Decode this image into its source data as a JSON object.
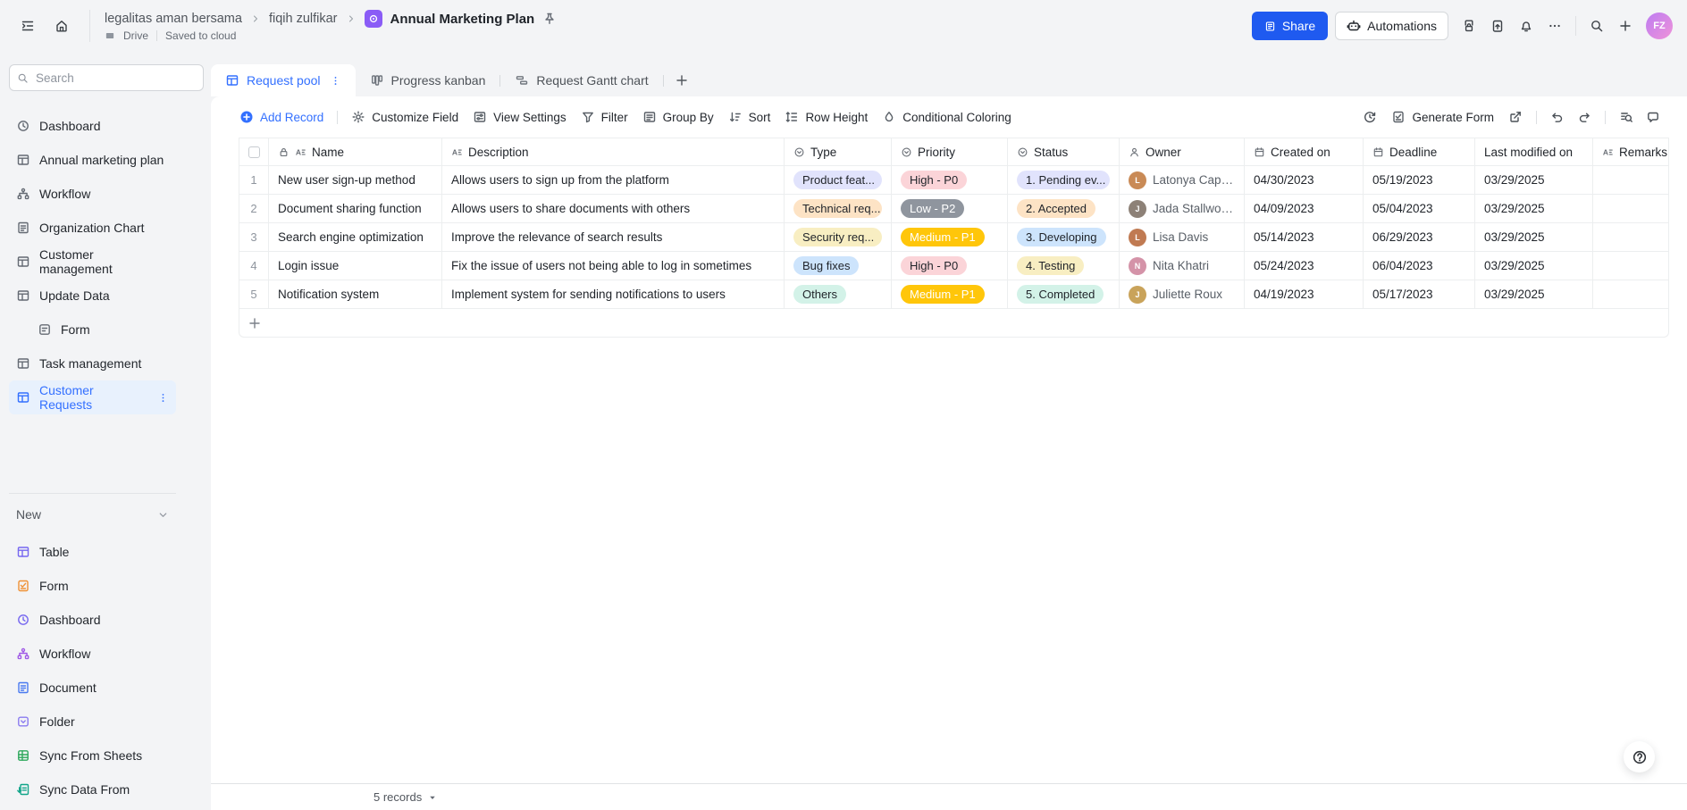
{
  "colors": {
    "accent": "#3370ff",
    "share_button": "#1f5af0",
    "selected_bg": "#e8f1fd",
    "app_icon": "#8a5cf6"
  },
  "topbar": {
    "breadcrumb": [
      {
        "label": "legalitas aman bersama"
      },
      {
        "label": "fiqih zulfikar"
      },
      {
        "label": "Annual Marketing Plan"
      }
    ],
    "drive_label": "Drive",
    "saved_label": "Saved to cloud",
    "share_label": "Share",
    "automations_label": "Automations",
    "avatar_initials": "FZ",
    "right_icons": [
      {
        "icon": "filelock",
        "name": "file-permissions-icon"
      },
      {
        "icon": "approval",
        "name": "approval-icon"
      },
      {
        "icon": "bell",
        "name": "notifications-icon"
      },
      {
        "icon": "ellipsis",
        "name": "more-icon"
      },
      {
        "divider": true
      },
      {
        "icon": "search",
        "name": "search-icon"
      },
      {
        "icon": "plus",
        "name": "create-new-icon"
      }
    ]
  },
  "sidebar": {
    "search_placeholder": "Search",
    "items": [
      {
        "label": "Dashboard",
        "icon": "clock"
      },
      {
        "label": "Annual marketing plan",
        "icon": "grid"
      },
      {
        "label": "Workflow",
        "icon": "workflow"
      },
      {
        "label": "Organization Chart",
        "icon": "doc"
      },
      {
        "label": "Customer management",
        "icon": "grid"
      },
      {
        "label": "Update Data",
        "icon": "grid"
      },
      {
        "label": "Form",
        "icon": "form",
        "sub": true
      },
      {
        "label": "Task management",
        "icon": "grid"
      },
      {
        "label": "Customer Requests",
        "icon": "grid",
        "selected": true
      }
    ],
    "new_section_label": "New",
    "new_items": [
      {
        "label": "Table",
        "icon": "grid",
        "color": "#7667f0"
      },
      {
        "label": "Form",
        "icon": "formcheck",
        "color": "#ef9135"
      },
      {
        "label": "Dashboard",
        "icon": "clock",
        "color": "#7667f0"
      },
      {
        "label": "Workflow",
        "icon": "workflow",
        "color": "#a05ae6"
      },
      {
        "label": "Document",
        "icon": "doc",
        "color": "#4a7af0"
      },
      {
        "label": "Folder",
        "icon": "folderv",
        "color": "#8a7bf0"
      },
      {
        "label": "Sync From Sheets",
        "icon": "sheets",
        "color": "#2ea85c"
      },
      {
        "label": "Sync Data From",
        "icon": "sync",
        "color": "#12a58a"
      }
    ]
  },
  "tabs": {
    "items": [
      {
        "label": "Request pool",
        "icon": "grid",
        "active": true
      },
      {
        "label": "Progress kanban",
        "icon": "kanban"
      },
      {
        "label": "Request Gantt chart",
        "icon": "gantt"
      }
    ]
  },
  "toolbar": {
    "left": [
      {
        "label": "Add Record",
        "icon": "pluscircle",
        "accent": true,
        "divider_after": true
      },
      {
        "label": "Customize Field",
        "icon": "gear"
      },
      {
        "label": "View Settings",
        "icon": "panel"
      },
      {
        "label": "Filter",
        "icon": "filter"
      },
      {
        "label": "Group By",
        "icon": "groupby"
      },
      {
        "label": "Sort",
        "icon": "sort"
      },
      {
        "label": "Row Height",
        "icon": "rowheight"
      },
      {
        "label": "Conditional Coloring",
        "icon": "coloring"
      }
    ],
    "right": [
      {
        "icon": "history",
        "name": "history-icon"
      },
      {
        "icon": "formcheck",
        "label": "Generate Form",
        "name": "generate-form-button"
      },
      {
        "icon": "export",
        "name": "share-view-icon"
      },
      {
        "divider": true
      },
      {
        "icon": "undo",
        "name": "undo-icon"
      },
      {
        "icon": "redo",
        "name": "redo-icon"
      },
      {
        "divider": true
      },
      {
        "icon": "findview",
        "name": "find-in-view-icon"
      },
      {
        "icon": "comment",
        "name": "comment-icon"
      }
    ]
  },
  "table": {
    "columns": [
      {
        "key": "name",
        "label": "Name",
        "icon": "textfield",
        "lock": true
      },
      {
        "key": "description",
        "label": "Description",
        "icon": "textfield"
      },
      {
        "key": "type",
        "label": "Type",
        "icon": "select"
      },
      {
        "key": "priority",
        "label": "Priority",
        "icon": "select"
      },
      {
        "key": "status",
        "label": "Status",
        "icon": "select"
      },
      {
        "key": "owner",
        "label": "Owner",
        "icon": "person"
      },
      {
        "key": "created_on",
        "label": "Created on",
        "icon": "calendar"
      },
      {
        "key": "deadline",
        "label": "Deadline",
        "icon": "calendar"
      },
      {
        "key": "last_modified",
        "label": "Last modified on",
        "icon": null
      },
      {
        "key": "remarks",
        "label": "Remarks",
        "icon": "textfield"
      }
    ],
    "rows": [
      {
        "num": "1",
        "name": "New user sign-up method",
        "description": "Allows users to sign up from the platform",
        "type": {
          "label": "Product feat...",
          "bg": "#e1e3fc",
          "fg": "#1f2329"
        },
        "priority": {
          "label": "High - P0",
          "bg": "#fbd4d8",
          "fg": "#1f2329"
        },
        "status": {
          "label": "1. Pending ev...",
          "bg": "#e1e3fc",
          "fg": "#1f2329"
        },
        "owner": {
          "name": "Latonya Capers",
          "color": "#c98a56"
        },
        "created_on": "04/30/2023",
        "deadline": "05/19/2023",
        "last_modified": "03/29/2025",
        "remarks": ""
      },
      {
        "num": "2",
        "name": "Document sharing function",
        "description": "Allows users to share documents with others",
        "type": {
          "label": "Technical req...",
          "bg": "#fde3c5",
          "fg": "#1f2329"
        },
        "priority": {
          "label": "Low - P2",
          "bg": "#8f959e",
          "fg": "#ffffff"
        },
        "status": {
          "label": "2. Accepted",
          "bg": "#fde3c5",
          "fg": "#1f2329"
        },
        "owner": {
          "name": "Jada Stallworth",
          "color": "#8d8177"
        },
        "created_on": "04/09/2023",
        "deadline": "05/04/2023",
        "last_modified": "03/29/2025",
        "remarks": ""
      },
      {
        "num": "3",
        "name": "Search engine optimization",
        "description": "Improve the relevance of search results",
        "type": {
          "label": "Security req...",
          "bg": "#f8eec2",
          "fg": "#1f2329"
        },
        "priority": {
          "label": "Medium - P1",
          "bg": "#ffc60a",
          "fg": "#ffffff"
        },
        "status": {
          "label": "3. Developing",
          "bg": "#cde4fc",
          "fg": "#1f2329"
        },
        "owner": {
          "name": "Lisa Davis",
          "color": "#c07a52"
        },
        "created_on": "05/14/2023",
        "deadline": "06/29/2023",
        "last_modified": "03/29/2025",
        "remarks": ""
      },
      {
        "num": "4",
        "name": "Login issue",
        "description": "Fix the issue of users not being able to log in sometimes",
        "type": {
          "label": "Bug fixes",
          "bg": "#cde4fc",
          "fg": "#1f2329"
        },
        "priority": {
          "label": "High - P0",
          "bg": "#fbd4d8",
          "fg": "#1f2329"
        },
        "status": {
          "label": "4. Testing",
          "bg": "#f8eec2",
          "fg": "#1f2329"
        },
        "owner": {
          "name": "Nita Khatri",
          "color": "#d493a8"
        },
        "created_on": "05/24/2023",
        "deadline": "06/04/2023",
        "last_modified": "03/29/2025",
        "remarks": ""
      },
      {
        "num": "5",
        "name": "Notification system",
        "description": "Implement system for sending notifications to users",
        "type": {
          "label": "Others",
          "bg": "#d3f2e8",
          "fg": "#1f2329"
        },
        "priority": {
          "label": "Medium - P1",
          "bg": "#ffc60a",
          "fg": "#ffffff"
        },
        "status": {
          "label": "5. Completed",
          "bg": "#d3f2e8",
          "fg": "#1f2329"
        },
        "owner": {
          "name": "Juliette Roux",
          "color": "#c9a35a"
        },
        "created_on": "04/19/2023",
        "deadline": "05/17/2023",
        "last_modified": "03/29/2025",
        "remarks": ""
      }
    ]
  },
  "footer": {
    "records_label": "5 records"
  }
}
